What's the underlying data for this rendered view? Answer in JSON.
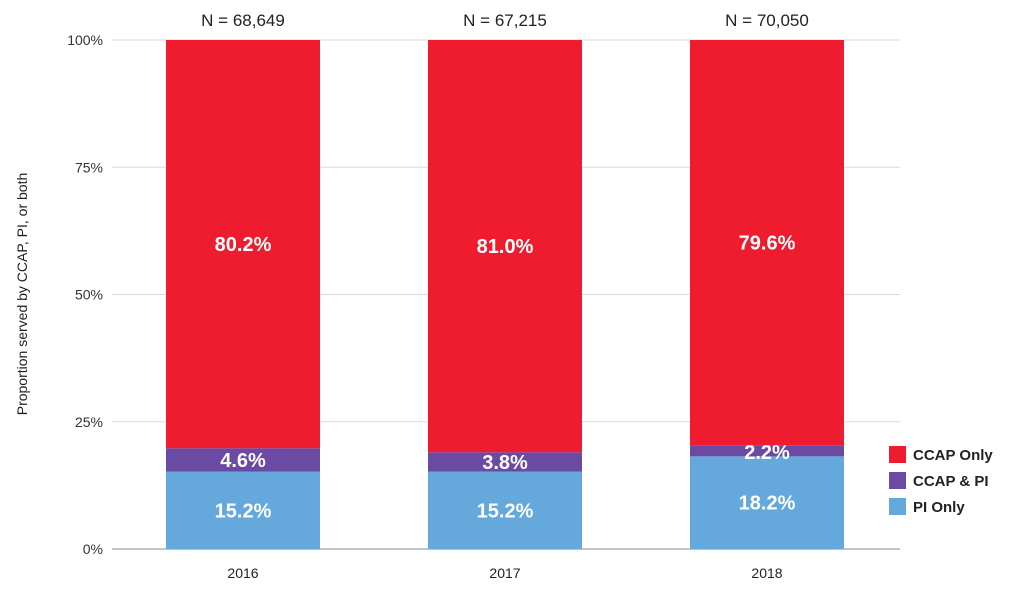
{
  "chart_data": {
    "type": "bar",
    "stacked": true,
    "categories": [
      "2016",
      "2017",
      "2018"
    ],
    "n_labels": [
      "N = 68,649",
      "N = 67,215",
      "N = 70,050"
    ],
    "ylabel": "Proportion served by CCAP, PI, or both",
    "ylim": [
      0,
      100
    ],
    "yticks": [
      "0%",
      "25%",
      "50%",
      "75%",
      "100%"
    ],
    "grid": true,
    "legend_position": "right",
    "series": [
      {
        "name": "PI Only",
        "color": "#64a8dc",
        "values": [
          15.2,
          15.2,
          18.2
        ],
        "labels": [
          "15.2%",
          "15.2%",
          "18.2%"
        ]
      },
      {
        "name": "CCAP & PI",
        "color": "#6a4aa2",
        "values": [
          4.6,
          3.8,
          2.2
        ],
        "labels": [
          "4.6%",
          "3.8%",
          "2.2%"
        ]
      },
      {
        "name": "CCAP Only",
        "color": "#ee1c2e",
        "values": [
          80.2,
          81.0,
          79.6
        ],
        "labels": [
          "80.2%",
          "81.0%",
          "79.6%"
        ]
      }
    ],
    "legend_order": [
      "CCAP Only",
      "CCAP & PI",
      "PI Only"
    ]
  }
}
